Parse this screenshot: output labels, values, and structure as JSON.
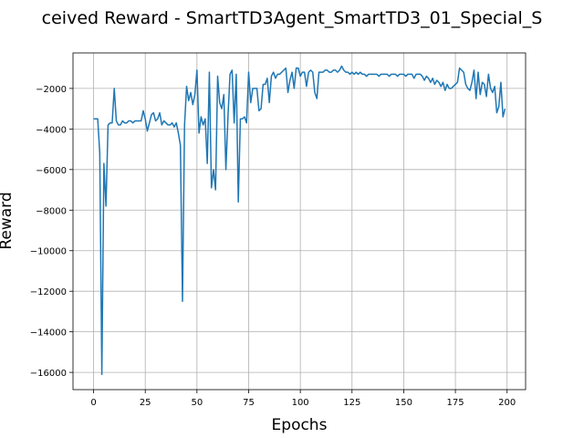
{
  "chart_data": {
    "type": "line",
    "title": "ceived Reward - SmartTD3Agent_SmartTD3_01_Special_S",
    "x_label": "Epochs",
    "y_label": "Reward",
    "x": [
      0,
      1,
      2,
      3,
      4,
      5,
      6,
      7,
      8,
      9,
      10,
      11,
      12,
      13,
      14,
      15,
      16,
      17,
      18,
      19,
      20,
      21,
      22,
      23,
      24,
      25,
      26,
      27,
      28,
      29,
      30,
      31,
      32,
      33,
      34,
      35,
      36,
      37,
      38,
      39,
      40,
      41,
      42,
      43,
      44,
      45,
      46,
      47,
      48,
      49,
      50,
      51,
      52,
      53,
      54,
      55,
      56,
      57,
      58,
      59,
      60,
      61,
      62,
      63,
      64,
      65,
      66,
      67,
      68,
      69,
      70,
      71,
      72,
      73,
      74,
      75,
      76,
      77,
      78,
      79,
      80,
      81,
      82,
      83,
      84,
      85,
      86,
      87,
      88,
      89,
      90,
      91,
      92,
      93,
      94,
      95,
      96,
      97,
      98,
      99,
      100,
      101,
      102,
      103,
      104,
      105,
      106,
      107,
      108,
      109,
      110,
      111,
      112,
      113,
      114,
      115,
      116,
      117,
      118,
      119,
      120,
      121,
      122,
      123,
      124,
      125,
      126,
      127,
      128,
      129,
      130,
      131,
      132,
      133,
      134,
      135,
      136,
      137,
      138,
      139,
      140,
      141,
      142,
      143,
      144,
      145,
      146,
      147,
      148,
      149,
      150,
      151,
      152,
      153,
      154,
      155,
      156,
      157,
      158,
      159,
      160,
      161,
      162,
      163,
      164,
      165,
      166,
      167,
      168,
      169,
      170,
      171,
      172,
      173,
      174,
      175,
      176,
      177,
      178,
      179,
      180,
      181,
      182,
      183,
      184,
      185,
      186,
      187,
      188,
      189,
      190,
      191,
      192,
      193,
      194,
      195,
      196,
      197,
      198,
      199
    ],
    "series": [
      {
        "color": "#1f77b4",
        "values": [
          -3500,
          -3500,
          -3500,
          -5200,
          -16100,
          -5700,
          -7800,
          -3800,
          -3700,
          -3700,
          -2000,
          -3600,
          -3800,
          -3800,
          -3600,
          -3700,
          -3700,
          -3600,
          -3600,
          -3700,
          -3600,
          -3600,
          -3600,
          -3600,
          -3100,
          -3500,
          -4100,
          -3700,
          -3300,
          -3200,
          -3600,
          -3500,
          -3200,
          -3800,
          -3600,
          -3700,
          -3800,
          -3800,
          -3700,
          -3900,
          -3700,
          -4200,
          -4800,
          -12500,
          -3800,
          -1900,
          -2600,
          -2200,
          -2800,
          -2300,
          -1100,
          -4200,
          -3400,
          -3800,
          -3500,
          -5700,
          -1200,
          -6900,
          -6000,
          -7000,
          -1400,
          -2700,
          -3000,
          -2300,
          -6000,
          -3400,
          -1300,
          -1100,
          -3700,
          -1300,
          -7600,
          -3500,
          -3500,
          -3400,
          -3700,
          -1200,
          -2700,
          -2000,
          -2000,
          -2000,
          -3100,
          -3000,
          -1800,
          -1800,
          -1500,
          -2700,
          -1400,
          -1200,
          -1500,
          -1300,
          -1300,
          -1200,
          -1100,
          -1000,
          -2200,
          -1600,
          -1200,
          -2000,
          -1000,
          -1000,
          -1400,
          -1200,
          -1200,
          -1900,
          -1200,
          -1100,
          -1200,
          -2200,
          -2500,
          -1200,
          -1200,
          -1200,
          -1100,
          -1100,
          -1200,
          -1200,
          -1100,
          -1100,
          -1200,
          -1100,
          -900,
          -1100,
          -1200,
          -1200,
          -1300,
          -1200,
          -1300,
          -1200,
          -1300,
          -1200,
          -1300,
          -1300,
          -1400,
          -1300,
          -1300,
          -1300,
          -1300,
          -1300,
          -1400,
          -1300,
          -1300,
          -1300,
          -1300,
          -1400,
          -1300,
          -1300,
          -1300,
          -1400,
          -1300,
          -1300,
          -1300,
          -1400,
          -1300,
          -1300,
          -1300,
          -1500,
          -1300,
          -1300,
          -1300,
          -1400,
          -1600,
          -1400,
          -1500,
          -1700,
          -1500,
          -1800,
          -1600,
          -1700,
          -1900,
          -1700,
          -2100,
          -1800,
          -2000,
          -2000,
          -1900,
          -1800,
          -1700,
          -1000,
          -1100,
          -1200,
          -1800,
          -2000,
          -2100,
          -1700,
          -1100,
          -2500,
          -1200,
          -2300,
          -1700,
          -1800,
          -2400,
          -1300,
          -2000,
          -2200,
          -1900,
          -3200,
          -2900,
          -1700,
          -3400,
          -3000
        ]
      }
    ],
    "xlim": [
      -9.95,
      208.95
    ],
    "xticks": [
      0,
      25,
      50,
      75,
      100,
      125,
      150,
      175,
      200
    ],
    "ylim": [
      -16850,
      -250
    ],
    "yticks": [
      {
        "value": -16000,
        "label": "−16000"
      },
      {
        "value": -14000,
        "label": "−14000"
      },
      {
        "value": -12000,
        "label": "−12000"
      },
      {
        "value": -10000,
        "label": "−10000"
      },
      {
        "value": -8000,
        "label": "−8000"
      },
      {
        "value": -6000,
        "label": "−6000"
      },
      {
        "value": -4000,
        "label": "−4000"
      },
      {
        "value": -2000,
        "label": "−2000"
      }
    ],
    "grid": true
  }
}
